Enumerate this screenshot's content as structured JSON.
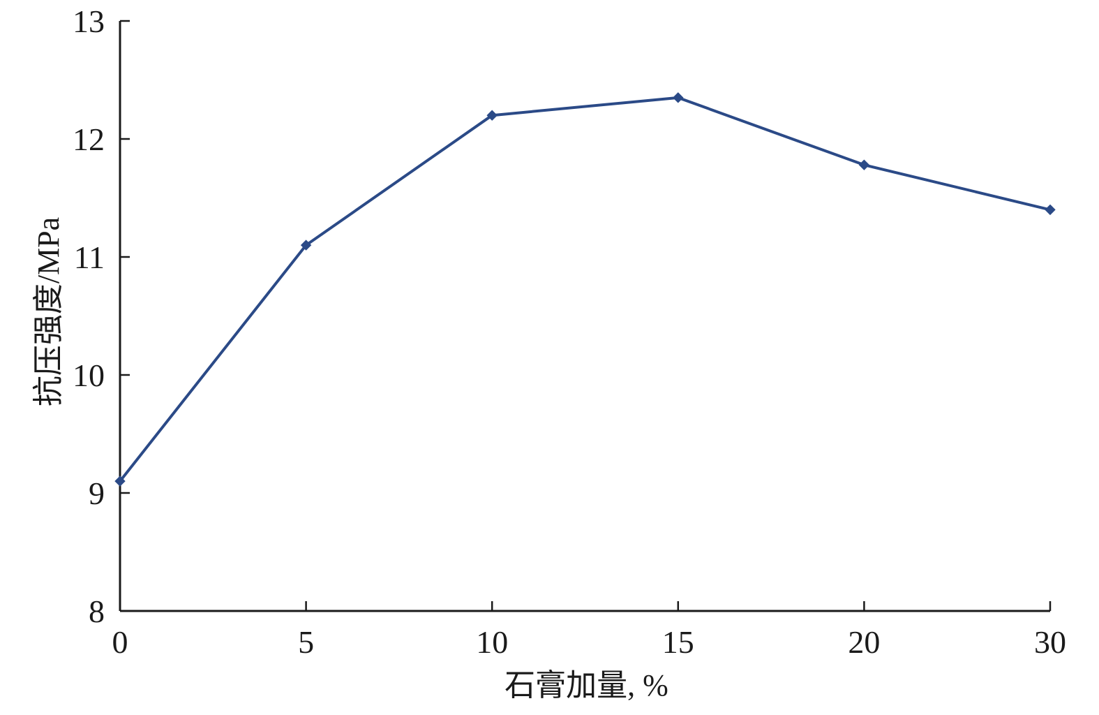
{
  "chart_data": {
    "type": "line",
    "categories": [
      "0",
      "5",
      "10",
      "15",
      "20",
      "30"
    ],
    "series": [
      {
        "values": [
          9.1,
          11.1,
          12.2,
          12.35,
          11.78,
          11.4
        ]
      }
    ],
    "xlabel": "石膏加量, %",
    "ylabel": "抗压强度/MPa",
    "ylim": [
      8,
      13
    ],
    "yticks": [
      "8",
      "9",
      "10",
      "11",
      "12",
      "13"
    ],
    "grid": false,
    "colors": {
      "series": "#2b4a87",
      "axis": "#1a1a1a"
    }
  }
}
